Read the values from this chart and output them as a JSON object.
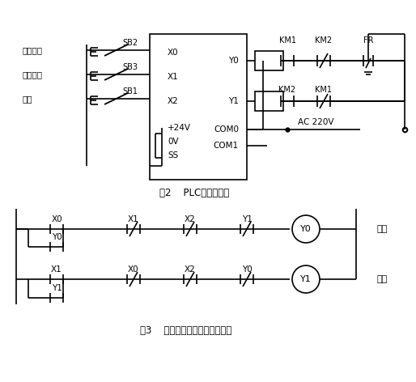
{
  "bg_color": "#ffffff",
  "line_color": "#000000",
  "fig2_caption": "图2    PLC外部接线图",
  "fig3_caption": "图3    异步电动机正反转控制电路",
  "labels_left": [
    "正转起动",
    "反转起动",
    "停止"
  ],
  "plc_inputs": [
    "X0",
    "X1",
    "X2",
    "+24V",
    "0V",
    "SS"
  ],
  "plc_outputs": [
    "Y0",
    "Y1",
    "COM0",
    "COM1"
  ],
  "input_labels": [
    "SB2",
    "SB3",
    "SB1"
  ],
  "km_labels_top": [
    "KM1",
    "KM2",
    "FR"
  ],
  "km_labels_mid": [
    "KM2",
    "KM1"
  ],
  "ac_label": "AC 220V"
}
